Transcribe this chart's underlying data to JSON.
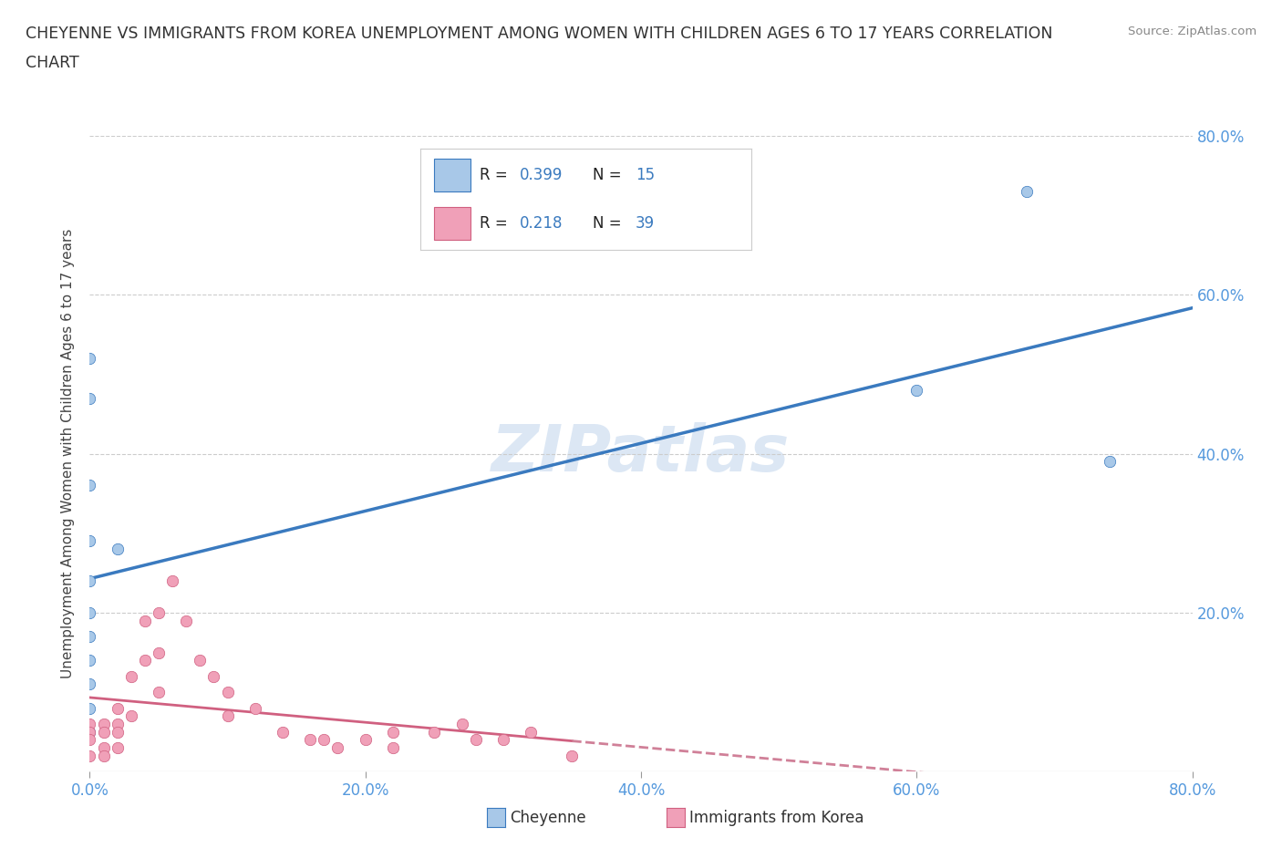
{
  "title_line1": "CHEYENNE VS IMMIGRANTS FROM KOREA UNEMPLOYMENT AMONG WOMEN WITH CHILDREN AGES 6 TO 17 YEARS CORRELATION",
  "title_line2": "CHART",
  "source": "Source: ZipAtlas.com",
  "ylabel": "Unemployment Among Women with Children Ages 6 to 17 years",
  "xlim": [
    0.0,
    0.8
  ],
  "ylim": [
    0.0,
    0.8
  ],
  "xticks": [
    0.0,
    0.2,
    0.4,
    0.6,
    0.8
  ],
  "yticks": [
    0.2,
    0.4,
    0.6,
    0.8
  ],
  "xticklabels": [
    "0.0%",
    "20.0%",
    "40.0%",
    "60.0%",
    "80.0%"
  ],
  "yticklabels": [
    "20.0%",
    "40.0%",
    "60.0%",
    "80.0%"
  ],
  "cheyenne_color": "#a8c8e8",
  "korea_color": "#f0a0b8",
  "cheyenne_line_color": "#3a7abf",
  "korea_line_color": "#d06080",
  "korea_line_dashed_color": "#d08098",
  "R_cheyenne": 0.399,
  "N_cheyenne": 15,
  "R_korea": 0.218,
  "N_korea": 39,
  "watermark": "ZIPatlas",
  "cheyenne_x": [
    0.0,
    0.0,
    0.0,
    0.0,
    0.0,
    0.0,
    0.0,
    0.0,
    0.0,
    0.0,
    0.0,
    0.02,
    0.6,
    0.68,
    0.74
  ],
  "cheyenne_y": [
    0.52,
    0.47,
    0.36,
    0.29,
    0.24,
    0.2,
    0.17,
    0.14,
    0.11,
    0.08,
    0.05,
    0.28,
    0.48,
    0.73,
    0.39
  ],
  "korea_x": [
    0.0,
    0.0,
    0.0,
    0.0,
    0.01,
    0.01,
    0.01,
    0.01,
    0.02,
    0.02,
    0.02,
    0.02,
    0.03,
    0.03,
    0.04,
    0.04,
    0.05,
    0.05,
    0.05,
    0.06,
    0.07,
    0.08,
    0.09,
    0.1,
    0.1,
    0.12,
    0.14,
    0.16,
    0.17,
    0.18,
    0.2,
    0.22,
    0.22,
    0.25,
    0.27,
    0.28,
    0.3,
    0.32,
    0.35
  ],
  "korea_y": [
    0.06,
    0.05,
    0.04,
    0.02,
    0.06,
    0.05,
    0.03,
    0.02,
    0.08,
    0.06,
    0.05,
    0.03,
    0.12,
    0.07,
    0.19,
    0.14,
    0.2,
    0.15,
    0.1,
    0.24,
    0.19,
    0.14,
    0.12,
    0.1,
    0.07,
    0.08,
    0.05,
    0.04,
    0.04,
    0.03,
    0.04,
    0.05,
    0.03,
    0.05,
    0.06,
    0.04,
    0.04,
    0.05,
    0.02
  ],
  "grid_color": "#cccccc",
  "background_color": "#ffffff",
  "tick_color": "#5599dd",
  "legend_box_color": "#f0f0f0"
}
